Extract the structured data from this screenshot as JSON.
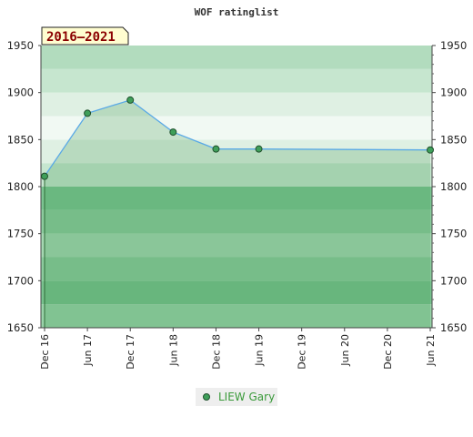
{
  "chart_data": {
    "type": "area",
    "title": "WOF ratinglist",
    "period_label": "2016–2021",
    "x_ticks": [
      "Dec 16",
      "Jun 17",
      "Dec 17",
      "Jun 18",
      "Dec 18",
      "Jun 19",
      "Dec 19",
      "Jun 20",
      "Dec 20",
      "Jun 21"
    ],
    "ylim": [
      1650,
      1950
    ],
    "y_ticks": [
      1650,
      1700,
      1750,
      1800,
      1850,
      1900,
      1950
    ],
    "grid": true,
    "legend_position": "bottom-center",
    "series": [
      {
        "name": "LIEW Gary",
        "color": "#5aa9e6",
        "marker_color": "#3f9f5a",
        "x": [
          "Dec 16",
          "Jun 17",
          "Dec 17",
          "Jun 18",
          "Dec 18",
          "Jun 19",
          "Jun 21"
        ],
        "values": [
          1811,
          1878,
          1892,
          1858,
          1840,
          1840,
          1839
        ]
      }
    ]
  },
  "colors": {
    "band_colors": [
      "#99d3a9",
      "#79c28f",
      "#8ccb9e",
      "#a5d7b2",
      "#8ccb9e",
      "#7cc492",
      "#c6e6cf",
      "#dff0e3",
      "#f1f9f3",
      "#dff0e3",
      "#c6e6cf",
      "#b2dcbe"
    ],
    "badge_bg": "#fffdd0"
  }
}
